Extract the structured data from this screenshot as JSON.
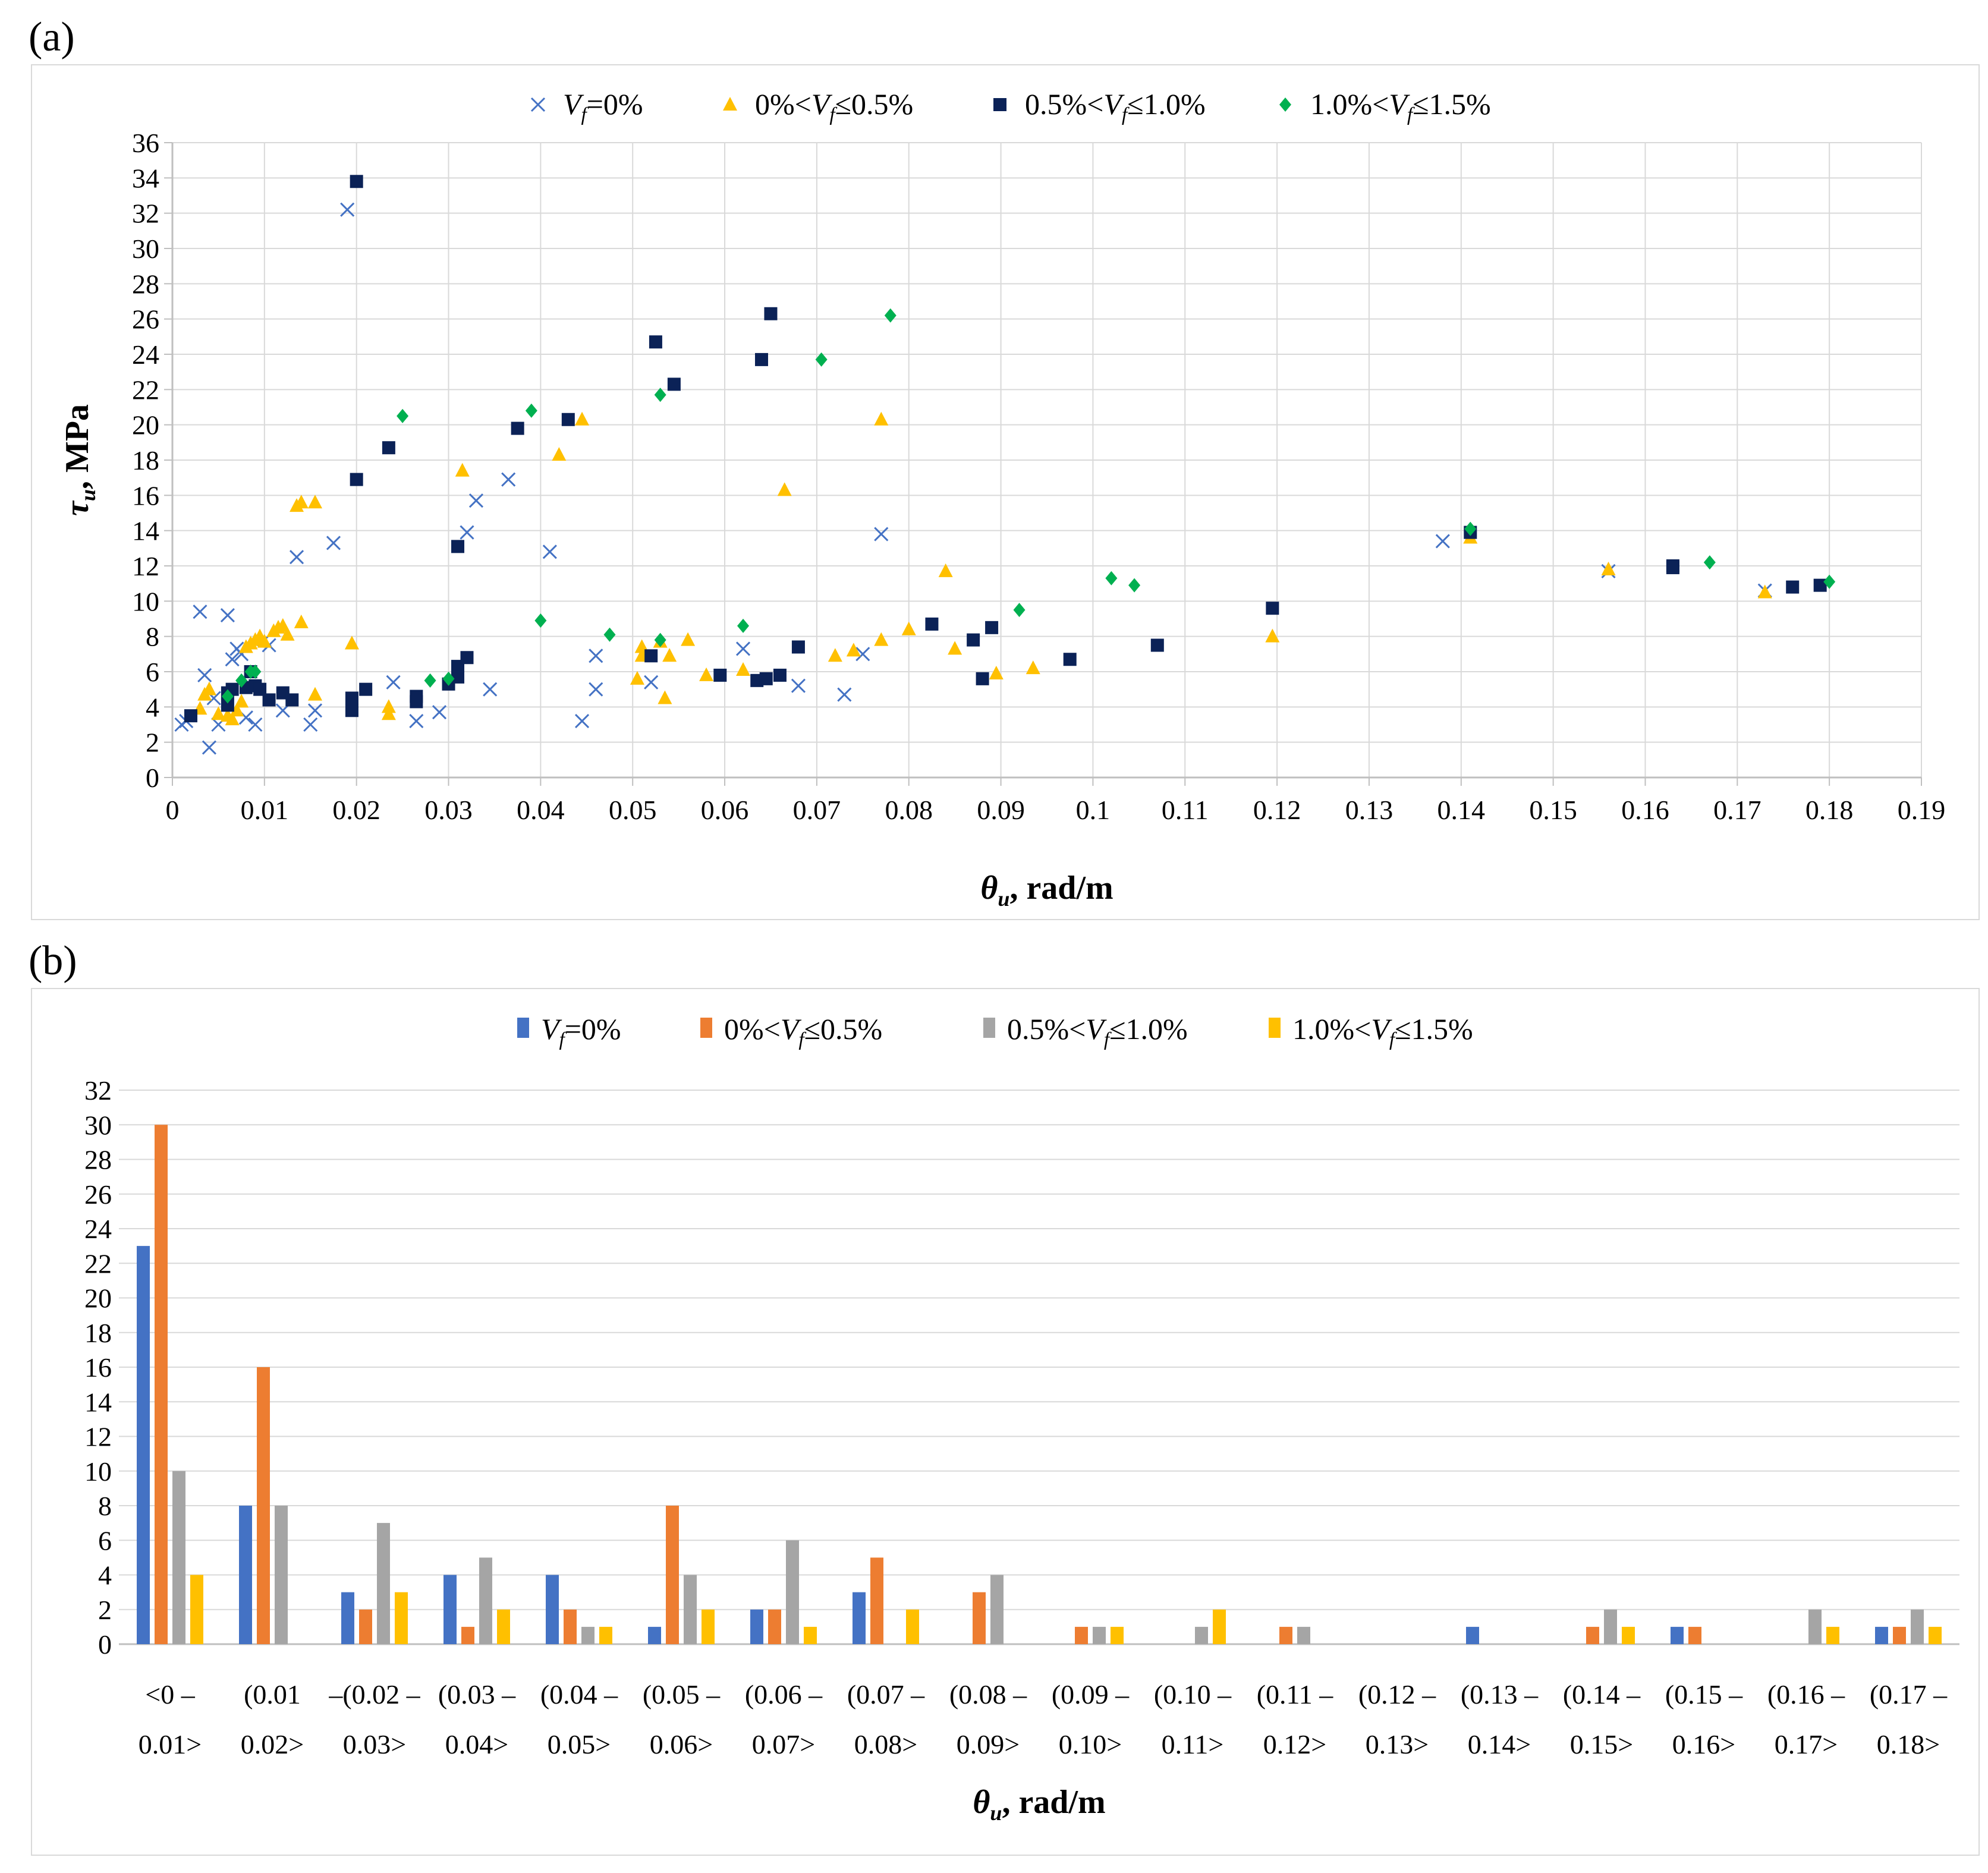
{
  "panels": {
    "a_label": "(a)",
    "b_label": "(b)"
  },
  "colors": {
    "s0": "#4472c4",
    "s1": "#ffc000",
    "s2": "#0b2257",
    "s3": "#00b050",
    "b0": "#4472c4",
    "b1": "#ed7d31",
    "b2": "#a5a5a5",
    "b3": "#ffc000",
    "grid": "#d9d9d9",
    "axis": "#bfbfbf"
  },
  "chart_data": [
    {
      "type": "scatter",
      "panel": "(a)",
      "title": "",
      "xlabel": "θu, rad/m",
      "ylabel": "τu, MPa",
      "xlim": [
        0,
        0.19
      ],
      "ylim": [
        0,
        36
      ],
      "xticks": [
        "0",
        "0.01",
        "0.02",
        "0.03",
        "0.04",
        "0.05",
        "0.06",
        "0.07",
        "0.08",
        "0.09",
        "0.1",
        "0.11",
        "0.12",
        "0.13",
        "0.14",
        "0.15",
        "0.16",
        "0.17",
        "0.18",
        "0.19"
      ],
      "yticks": [
        "0",
        "2",
        "4",
        "6",
        "8",
        "10",
        "12",
        "14",
        "16",
        "18",
        "20",
        "22",
        "24",
        "26",
        "28",
        "30",
        "32",
        "34",
        "36"
      ],
      "legend_position": "top",
      "series": [
        {
          "name": "Vf=0%",
          "marker": "x",
          "points": [
            [
              0.001,
              3.0
            ],
            [
              0.0015,
              3.2
            ],
            [
              0.003,
              9.4
            ],
            [
              0.0035,
              5.8
            ],
            [
              0.004,
              1.7
            ],
            [
              0.0045,
              4.5
            ],
            [
              0.005,
              3.0
            ],
            [
              0.006,
              9.2
            ],
            [
              0.0065,
              6.7
            ],
            [
              0.007,
              7.3
            ],
            [
              0.0075,
              7.0
            ],
            [
              0.008,
              3.4
            ],
            [
              0.009,
              3.0
            ],
            [
              0.01,
              7.8
            ],
            [
              0.0105,
              7.5
            ],
            [
              0.012,
              3.8
            ],
            [
              0.0135,
              12.5
            ],
            [
              0.015,
              3.0
            ],
            [
              0.0155,
              3.8
            ],
            [
              0.0175,
              13.3
            ],
            [
              0.019,
              32.2
            ],
            [
              0.024,
              5.4
            ],
            [
              0.0265,
              3.2
            ],
            [
              0.029,
              3.7
            ],
            [
              0.032,
              13.9
            ],
            [
              0.033,
              15.7
            ],
            [
              0.0345,
              5.0
            ],
            [
              0.0365,
              16.9
            ],
            [
              0.041,
              12.8
            ],
            [
              0.0445,
              3.2
            ],
            [
              0.046,
              5.0
            ],
            [
              0.046,
              6.9
            ],
            [
              0.052,
              5.4
            ],
            [
              0.062,
              7.3
            ],
            [
              0.068,
              5.2
            ],
            [
              0.073,
              4.7
            ],
            [
              0.075,
              7.0
            ],
            [
              0.077,
              13.8
            ],
            [
              0.138,
              13.4
            ],
            [
              0.156,
              11.7
            ],
            [
              0.173,
              10.6
            ]
          ]
        },
        {
          "name": "0%<Vf≤0.5%",
          "marker": "triangle",
          "points": [
            [
              0.003,
              3.9
            ],
            [
              0.0035,
              4.7
            ],
            [
              0.004,
              5.0
            ],
            [
              0.005,
              3.6
            ],
            [
              0.006,
              3.5
            ],
            [
              0.0065,
              3.3
            ],
            [
              0.007,
              3.8
            ],
            [
              0.0075,
              4.3
            ],
            [
              0.008,
              7.4
            ],
            [
              0.0085,
              7.6
            ],
            [
              0.009,
              7.8
            ],
            [
              0.0095,
              8.0
            ],
            [
              0.01,
              7.7
            ],
            [
              0.011,
              8.3
            ],
            [
              0.0115,
              8.5
            ],
            [
              0.012,
              8.6
            ],
            [
              0.0125,
              8.1
            ],
            [
              0.0135,
              15.4
            ],
            [
              0.014,
              15.6
            ],
            [
              0.014,
              8.8
            ],
            [
              0.0155,
              15.6
            ],
            [
              0.0155,
              4.7
            ],
            [
              0.0195,
              7.6
            ],
            [
              0.0235,
              4.0
            ],
            [
              0.0235,
              3.6
            ],
            [
              0.0315,
              17.4
            ],
            [
              0.042,
              18.3
            ],
            [
              0.0445,
              20.3
            ],
            [
              0.0505,
              5.6
            ],
            [
              0.051,
              7.4
            ],
            [
              0.051,
              6.9
            ],
            [
              0.053,
              7.7
            ],
            [
              0.0535,
              4.5
            ],
            [
              0.054,
              6.9
            ],
            [
              0.056,
              7.8
            ],
            [
              0.058,
              5.8
            ],
            [
              0.062,
              6.1
            ],
            [
              0.0665,
              16.3
            ],
            [
              0.072,
              6.9
            ],
            [
              0.074,
              7.2
            ],
            [
              0.077,
              20.3
            ],
            [
              0.077,
              7.8
            ],
            [
              0.08,
              8.4
            ],
            [
              0.084,
              11.7
            ],
            [
              0.085,
              7.3
            ],
            [
              0.0895,
              5.9
            ],
            [
              0.0935,
              6.2
            ],
            [
              0.1195,
              8.0
            ],
            [
              0.141,
              13.6
            ],
            [
              0.156,
              11.8
            ],
            [
              0.173,
              10.5
            ]
          ]
        },
        {
          "name": "0.5%<Vf≤1.0%",
          "marker": "square",
          "points": [
            [
              0.002,
              3.5
            ],
            [
              0.006,
              4.8
            ],
            [
              0.006,
              4.1
            ],
            [
              0.0065,
              5.0
            ],
            [
              0.008,
              5.1
            ],
            [
              0.0085,
              6.0
            ],
            [
              0.009,
              5.2
            ],
            [
              0.0095,
              5.0
            ],
            [
              0.0105,
              4.4
            ],
            [
              0.012,
              4.8
            ],
            [
              0.013,
              4.4
            ],
            [
              0.0195,
              3.8
            ],
            [
              0.0195,
              4.5
            ],
            [
              0.02,
              33.8
            ],
            [
              0.02,
              16.9
            ],
            [
              0.021,
              5.0
            ],
            [
              0.0235,
              18.7
            ],
            [
              0.0265,
              4.6
            ],
            [
              0.0265,
              4.3
            ],
            [
              0.03,
              5.3
            ],
            [
              0.031,
              13.1
            ],
            [
              0.031,
              5.7
            ],
            [
              0.031,
              6.3
            ],
            [
              0.032,
              6.8
            ],
            [
              0.0375,
              19.8
            ],
            [
              0.043,
              20.3
            ],
            [
              0.052,
              6.9
            ],
            [
              0.0525,
              24.7
            ],
            [
              0.0545,
              22.3
            ],
            [
              0.0595,
              5.8
            ],
            [
              0.0635,
              5.5
            ],
            [
              0.064,
              23.7
            ],
            [
              0.0645,
              5.6
            ],
            [
              0.065,
              26.3
            ],
            [
              0.066,
              5.8
            ],
            [
              0.068,
              7.4
            ],
            [
              0.0825,
              8.7
            ],
            [
              0.087,
              7.8
            ],
            [
              0.088,
              5.6
            ],
            [
              0.089,
              8.5
            ],
            [
              0.0975,
              6.7
            ],
            [
              0.107,
              7.5
            ],
            [
              0.1195,
              9.6
            ],
            [
              0.141,
              13.9
            ],
            [
              0.163,
              12.0
            ],
            [
              0.163,
              11.9
            ],
            [
              0.176,
              10.8
            ],
            [
              0.179,
              10.9
            ]
          ]
        },
        {
          "name": "1.0%<Vf≤1.5%",
          "marker": "diamond",
          "points": [
            [
              0.006,
              4.6
            ],
            [
              0.0075,
              5.5
            ],
            [
              0.0085,
              6.0
            ],
            [
              0.009,
              6.0
            ],
            [
              0.025,
              20.5
            ],
            [
              0.028,
              5.5
            ],
            [
              0.03,
              5.6
            ],
            [
              0.039,
              20.8
            ],
            [
              0.04,
              8.9
            ],
            [
              0.0475,
              8.1
            ],
            [
              0.053,
              21.7
            ],
            [
              0.053,
              7.8
            ],
            [
              0.062,
              8.6
            ],
            [
              0.0705,
              23.7
            ],
            [
              0.078,
              26.2
            ],
            [
              0.092,
              9.5
            ],
            [
              0.102,
              11.3
            ],
            [
              0.1045,
              10.9
            ],
            [
              0.141,
              14.1
            ],
            [
              0.167,
              12.2
            ],
            [
              0.18,
              11.1
            ]
          ]
        }
      ]
    },
    {
      "type": "bar",
      "panel": "(b)",
      "title": "",
      "xlabel": "θu, rad/m",
      "ylabel": "",
      "ylim": [
        0,
        32
      ],
      "yticks": [
        "0",
        "2",
        "4",
        "6",
        "8",
        "10",
        "12",
        "14",
        "16",
        "18",
        "20",
        "22",
        "24",
        "26",
        "28",
        "30",
        "32"
      ],
      "legend_position": "top",
      "categories": [
        [
          "<0 –",
          "0.01>"
        ],
        [
          "(0.01",
          "0.02>"
        ],
        [
          "–(0.02 –",
          "0.03>"
        ],
        [
          "(0.03 –",
          "0.04>"
        ],
        [
          "(0.04 –",
          "0.05>"
        ],
        [
          "(0.05 –",
          "0.06>"
        ],
        [
          "(0.06 –",
          "0.07>"
        ],
        [
          "(0.07 –",
          "0.08>"
        ],
        [
          "(0.08 –",
          "0.09>"
        ],
        [
          "(0.09 –",
          "0.10>"
        ],
        [
          "(0.10 –",
          "0.11>"
        ],
        [
          "(0.11 –",
          "0.12>"
        ],
        [
          "(0.12 –",
          "0.13>"
        ],
        [
          "(0.13 –",
          "0.14>"
        ],
        [
          "(0.14 –",
          "0.15>"
        ],
        [
          "(0.15 –",
          "0.16>"
        ],
        [
          "(0.16 –",
          "0.17>"
        ],
        [
          "(0.17 –",
          "0.18>"
        ]
      ],
      "series": [
        {
          "name": "Vf=0%",
          "values": [
            23,
            8,
            3,
            4,
            4,
            1,
            2,
            3,
            0,
            0,
            0,
            0,
            0,
            1,
            0,
            1,
            0,
            1
          ]
        },
        {
          "name": "0%<Vf≤0.5%",
          "values": [
            30,
            16,
            2,
            1,
            2,
            8,
            2,
            5,
            3,
            1,
            0,
            1,
            0,
            0,
            1,
            1,
            0,
            1
          ]
        },
        {
          "name": "0.5%<Vf≤1.0%",
          "values": [
            10,
            8,
            7,
            5,
            1,
            4,
            6,
            0,
            4,
            1,
            1,
            1,
            0,
            0,
            2,
            0,
            2,
            2
          ]
        },
        {
          "name": "1.0%<Vf≤1.5%",
          "values": [
            4,
            0,
            3,
            2,
            1,
            2,
            1,
            2,
            0,
            1,
            2,
            0,
            0,
            0,
            1,
            0,
            1,
            1
          ]
        }
      ]
    }
  ]
}
